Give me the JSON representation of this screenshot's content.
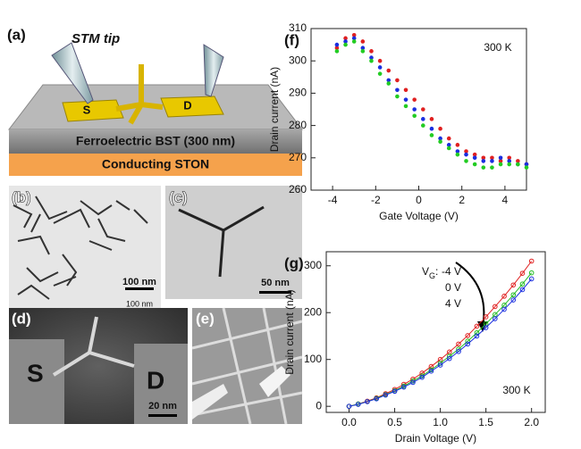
{
  "panels": {
    "a": {
      "label": "(a)",
      "tip": "STM tip",
      "source": "S",
      "drain": "D",
      "layer1": "Ferroelectric BST (300 nm)",
      "layer2": "Conducting STON"
    },
    "b": {
      "label": "(b)",
      "scale": "100 nm",
      "scale2": "100 nm"
    },
    "c": {
      "label": "(c)",
      "scale": "50 nm"
    },
    "d": {
      "label": "(d)",
      "source": "S",
      "drain": "D",
      "scale": "20 nm"
    },
    "e": {
      "label": "(e)"
    }
  },
  "chart_data": [
    {
      "type": "scatter",
      "title": "(f)",
      "annotation": "300 K",
      "x_label": "Gate Voltage (V)",
      "y_label": "Drain current (nA)",
      "x": [
        -3.8,
        -3.4,
        -3.0,
        -2.6,
        -2.2,
        -1.8,
        -1.4,
        -1.0,
        -0.6,
        -0.2,
        0.2,
        0.6,
        1.0,
        1.4,
        1.8,
        2.2,
        2.6,
        3.0,
        3.4,
        3.8,
        4.2,
        4.6,
        5.0
      ],
      "series": [
        {
          "color": "#e02020",
          "values": [
            304,
            307,
            308,
            306,
            303,
            300,
            297,
            294,
            291,
            288,
            285,
            282,
            279,
            276,
            274,
            272,
            271,
            270,
            270,
            269,
            270,
            269,
            268
          ]
        },
        {
          "color": "#1a2ee0",
          "values": [
            305,
            306,
            307,
            304,
            301,
            298,
            294,
            291,
            288,
            285,
            282,
            279,
            276,
            274,
            272,
            271,
            270,
            269,
            269,
            270,
            269,
            268,
            268
          ]
        },
        {
          "color": "#22cc22",
          "values": [
            303,
            305,
            306,
            303,
            300,
            296,
            293,
            289,
            286,
            283,
            280,
            277,
            275,
            273,
            271,
            269,
            268,
            267,
            267,
            268,
            268,
            268,
            267
          ]
        }
      ],
      "xlim": [
        -5,
        5
      ],
      "xticks": [
        -4,
        -2,
        0,
        2,
        4
      ],
      "ylim": [
        260,
        310
      ],
      "yticks": [
        260,
        270,
        280,
        290,
        300,
        310
      ]
    },
    {
      "type": "line",
      "title": "(g)",
      "annotation": "300 K",
      "x_label": "Drain Voltage (V)",
      "y_label": "Drain current (nA)",
      "legend_label": {
        "symbol": "V",
        "subscript": "G",
        "separator": ":"
      },
      "x": [
        0,
        0.1,
        0.2,
        0.3,
        0.4,
        0.5,
        0.6,
        0.7,
        0.8,
        0.9,
        1.0,
        1.1,
        1.2,
        1.3,
        1.4,
        1.5,
        1.6,
        1.7,
        1.8,
        1.9,
        2.0
      ],
      "series": [
        {
          "name": "-4 V",
          "color": "#e02020",
          "values": [
            0,
            5,
            11,
            18,
            27,
            36,
            47,
            58,
            71,
            85,
            100,
            116,
            133,
            151,
            171,
            191,
            213,
            235,
            259,
            284,
            310
          ]
        },
        {
          "name": "0 V",
          "color": "#22bb22",
          "values": [
            0,
            5,
            10,
            17,
            25,
            33,
            43,
            54,
            65,
            78,
            92,
            107,
            122,
            139,
            157,
            176,
            196,
            216,
            238,
            261,
            285
          ]
        },
        {
          "name": "4 V",
          "color": "#1a2ee0",
          "values": [
            0,
            4,
            10,
            16,
            24,
            32,
            41,
            51,
            62,
            75,
            88,
            102,
            117,
            133,
            150,
            168,
            187,
            207,
            227,
            249,
            272
          ]
        }
      ],
      "xlim": [
        -0.25,
        2.15
      ],
      "xticks": [
        {
          "value": 0,
          "label": "0.0"
        },
        0.5,
        {
          "value": 1,
          "label": "1.0"
        },
        1.5,
        {
          "value": 2,
          "label": "2.0"
        }
      ],
      "ylim": [
        -13,
        330
      ],
      "yticks": [
        0,
        100,
        200,
        300
      ]
    }
  ]
}
